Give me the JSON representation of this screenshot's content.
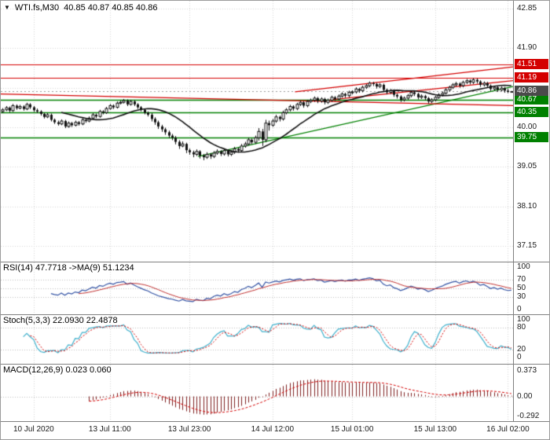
{
  "header": {
    "dropdown_icon": "▼",
    "symbol_timeframe": "WTI.fs,M30",
    "ohlc_text": "40.85 40.87 40.85 40.86"
  },
  "indicators": {
    "rsi_label": "RSI(14) 47.7718  ->MA(9) 51.1234",
    "stoch_label": "Stoch(5,3,3) 22.0930 22.4878",
    "macd_label": "MACD(12,26,9) 0.023 0.060"
  },
  "chart_data": {
    "type": "candlestick",
    "symbol": "WTI.fs",
    "timeframe": "M30",
    "current_bar": {
      "open": 40.85,
      "high": 40.87,
      "low": 40.85,
      "close": 40.86
    },
    "y_axis": {
      "top_value": 42.85,
      "bottom_value": 37.15,
      "step": 0.95,
      "ticks": [
        42.85,
        41.9,
        40.0,
        39.05,
        38.1,
        37.15
      ]
    },
    "levels": {
      "resistance": [
        41.51,
        41.19
      ],
      "support": [
        40.67,
        40.35,
        39.75
      ],
      "current_price": 40.86
    },
    "trendlines": [
      {
        "color": "green",
        "from_bar": 57,
        "from_price": 39.3,
        "to_bar": 148,
        "to_price": 40.98
      },
      {
        "color": "red",
        "from_bar": 0,
        "from_price": 40.8,
        "to_bar": 148,
        "to_price": 40.52
      },
      {
        "color": "red",
        "from_bar": 85,
        "from_price": 40.85,
        "to_bar": 148,
        "to_price": 41.45
      },
      {
        "color": "red",
        "from_bar": 95,
        "from_price": 40.66,
        "to_bar": 148,
        "to_price": 41.12
      }
    ],
    "x_labels": [
      "10 Jul 2020",
      "13 Jul 11:00",
      "13 Jul 23:00",
      "14 Jul 12:00",
      "15 Jul 01:00",
      "15 Jul 13:00",
      "16 Jul 02:00"
    ],
    "grid_bars": [
      9,
      31,
      54,
      78,
      101,
      125,
      146
    ],
    "rsi": {
      "period": 14,
      "ma_period": 9,
      "value": 47.7718,
      "ma_value": 51.1234,
      "ticks": [
        100,
        70,
        50,
        30,
        0
      ],
      "level_lines": [
        70,
        50,
        30
      ]
    },
    "stoch": {
      "k": 5,
      "d": 3,
      "slowing": 3,
      "value": 22.093,
      "signal": 22.4878,
      "ticks": [
        100,
        80,
        20,
        0
      ],
      "level_lines": [
        80,
        20
      ]
    },
    "macd": {
      "fast": 12,
      "slow": 26,
      "signal_period": 9,
      "value": 0.023,
      "signal": 0.06,
      "tick_values": [
        0.373,
        0,
        -0.292
      ],
      "tick_labels": [
        "0.373",
        "0.00",
        "-0.292"
      ]
    },
    "colors": {
      "grid": "#d6d6d6",
      "candle": "#111111",
      "ma": "#111111",
      "resistance": "#d40000",
      "support": "#008000",
      "current_badge": "#4a4a4a",
      "level_dotted": "#bdbdbd",
      "rsi_line": "#3353a4",
      "rsi_ma": "#c03030",
      "stoch_k": "#3fb0cc",
      "stoch_d": "#d40000",
      "macd_hist": "#7e1f1f",
      "macd_signal": "#d40000"
    },
    "ohlc": [
      [
        40.38,
        40.46,
        40.34,
        40.42
      ],
      [
        40.42,
        40.51,
        40.39,
        40.47
      ],
      [
        40.47,
        40.5,
        40.36,
        40.4
      ],
      [
        40.4,
        40.56,
        40.37,
        40.52
      ],
      [
        40.52,
        40.55,
        40.42,
        40.46
      ],
      [
        40.46,
        40.54,
        40.43,
        40.5
      ],
      [
        40.5,
        40.53,
        40.4,
        40.44
      ],
      [
        40.44,
        40.59,
        40.41,
        40.55
      ],
      [
        40.55,
        40.58,
        40.44,
        40.48
      ],
      [
        40.48,
        40.51,
        40.37,
        40.41
      ],
      [
        40.41,
        40.45,
        40.34,
        40.38
      ],
      [
        40.38,
        40.41,
        40.28,
        40.32
      ],
      [
        40.32,
        40.35,
        40.21,
        40.25
      ],
      [
        40.25,
        40.34,
        40.22,
        40.3
      ],
      [
        40.3,
        40.33,
        40.14,
        40.18
      ],
      [
        40.18,
        40.21,
        40.08,
        40.12
      ],
      [
        40.12,
        40.16,
        40.04,
        40.08
      ],
      [
        40.08,
        40.19,
        40.05,
        40.15
      ],
      [
        40.15,
        40.18,
        39.98,
        40.02
      ],
      [
        40.02,
        40.14,
        39.99,
        40.1
      ],
      [
        40.1,
        40.13,
        40.01,
        40.05
      ],
      [
        40.05,
        40.16,
        40.02,
        40.12
      ],
      [
        40.12,
        40.15,
        40.04,
        40.08
      ],
      [
        40.08,
        40.22,
        40.05,
        40.18
      ],
      [
        40.18,
        40.21,
        40.11,
        40.15
      ],
      [
        40.15,
        40.26,
        40.12,
        40.22
      ],
      [
        40.22,
        40.34,
        40.19,
        40.3
      ],
      [
        40.3,
        40.33,
        40.22,
        40.26
      ],
      [
        40.26,
        40.42,
        40.23,
        40.38
      ],
      [
        40.38,
        40.41,
        40.31,
        40.35
      ],
      [
        40.35,
        40.49,
        40.32,
        40.45
      ],
      [
        40.45,
        40.56,
        40.42,
        40.52
      ],
      [
        40.52,
        40.55,
        40.44,
        40.48
      ],
      [
        40.48,
        40.62,
        40.45,
        40.58
      ],
      [
        40.58,
        40.64,
        40.55,
        40.6
      ],
      [
        40.6,
        40.68,
        40.57,
        40.64
      ],
      [
        40.64,
        40.67,
        40.51,
        40.55
      ],
      [
        40.55,
        40.66,
        40.52,
        40.62
      ],
      [
        40.62,
        40.65,
        40.51,
        40.55
      ],
      [
        40.55,
        40.58,
        40.44,
        40.48
      ],
      [
        40.48,
        40.51,
        40.38,
        40.42
      ],
      [
        40.42,
        40.45,
        40.31,
        40.35
      ],
      [
        40.35,
        40.38,
        40.26,
        40.3
      ],
      [
        40.3,
        40.34,
        40.14,
        40.2
      ],
      [
        40.2,
        40.24,
        40.06,
        40.12
      ],
      [
        40.12,
        40.16,
        39.96,
        40.02
      ],
      [
        40.02,
        40.06,
        39.89,
        39.95
      ],
      [
        39.95,
        39.99,
        39.82,
        39.88
      ],
      [
        39.88,
        39.92,
        39.74,
        39.8
      ],
      [
        39.8,
        39.84,
        39.69,
        39.75
      ],
      [
        39.75,
        39.79,
        39.59,
        39.65
      ],
      [
        39.65,
        39.69,
        39.48,
        39.55
      ],
      [
        39.55,
        39.66,
        39.52,
        39.6
      ],
      [
        39.6,
        39.63,
        39.38,
        39.45
      ],
      [
        39.45,
        39.49,
        39.34,
        39.4
      ],
      [
        39.4,
        39.44,
        39.28,
        39.35
      ],
      [
        39.35,
        39.47,
        39.31,
        39.42
      ],
      [
        39.42,
        39.45,
        39.25,
        39.32
      ],
      [
        39.32,
        39.36,
        39.21,
        39.28
      ],
      [
        39.28,
        39.4,
        39.24,
        39.35
      ],
      [
        39.35,
        39.38,
        39.24,
        39.3
      ],
      [
        39.3,
        39.43,
        39.26,
        39.38
      ],
      [
        39.38,
        39.47,
        39.34,
        39.42
      ],
      [
        39.42,
        39.45,
        39.31,
        39.36
      ],
      [
        39.36,
        39.49,
        39.32,
        39.44
      ],
      [
        39.44,
        39.47,
        39.3,
        39.35
      ],
      [
        39.35,
        39.45,
        39.31,
        39.4
      ],
      [
        39.4,
        39.53,
        39.36,
        39.48
      ],
      [
        39.48,
        39.51,
        39.39,
        39.44
      ],
      [
        39.44,
        39.6,
        39.4,
        39.55
      ],
      [
        39.55,
        39.65,
        39.51,
        39.6
      ],
      [
        39.6,
        39.75,
        39.56,
        39.7
      ],
      [
        39.7,
        39.73,
        39.59,
        39.64
      ],
      [
        39.64,
        39.8,
        39.6,
        39.75
      ],
      [
        39.75,
        39.98,
        39.68,
        39.9
      ],
      [
        39.9,
        39.96,
        39.55,
        39.7
      ],
      [
        39.7,
        40.18,
        39.64,
        40.1
      ],
      [
        40.1,
        40.16,
        39.92,
        40.05
      ],
      [
        40.05,
        40.2,
        40.01,
        40.15
      ],
      [
        40.15,
        40.3,
        40.11,
        40.25
      ],
      [
        40.25,
        40.28,
        40.14,
        40.2
      ],
      [
        40.2,
        40.4,
        40.16,
        40.35
      ],
      [
        40.35,
        40.46,
        40.31,
        40.42
      ],
      [
        40.42,
        40.54,
        40.38,
        40.5
      ],
      [
        40.5,
        40.53,
        40.4,
        40.45
      ],
      [
        40.45,
        40.59,
        40.41,
        40.55
      ],
      [
        40.55,
        40.64,
        40.51,
        40.6
      ],
      [
        40.6,
        40.63,
        40.47,
        40.52
      ],
      [
        40.52,
        40.66,
        40.48,
        40.62
      ],
      [
        40.62,
        40.69,
        40.58,
        40.65
      ],
      [
        40.65,
        40.74,
        40.61,
        40.7
      ],
      [
        40.7,
        40.73,
        40.58,
        40.63
      ],
      [
        40.63,
        40.72,
        40.59,
        40.68
      ],
      [
        40.68,
        40.71,
        40.55,
        40.6
      ],
      [
        40.6,
        40.69,
        40.56,
        40.65
      ],
      [
        40.65,
        40.76,
        40.61,
        40.72
      ],
      [
        40.72,
        40.75,
        40.63,
        40.68
      ],
      [
        40.68,
        40.79,
        40.64,
        40.75
      ],
      [
        40.75,
        40.84,
        40.71,
        40.8
      ],
      [
        40.8,
        40.83,
        40.71,
        40.76
      ],
      [
        40.76,
        40.88,
        40.72,
        40.84
      ],
      [
        40.84,
        40.89,
        40.79,
        40.85
      ],
      [
        40.85,
        40.96,
        40.81,
        40.92
      ],
      [
        40.92,
        40.95,
        40.83,
        40.88
      ],
      [
        40.88,
        41.0,
        40.84,
        40.96
      ],
      [
        40.96,
        41.04,
        40.92,
        41.0
      ],
      [
        41.0,
        41.1,
        40.96,
        41.06
      ],
      [
        41.06,
        41.09,
        40.99,
        41.04
      ],
      [
        41.04,
        41.07,
        40.93,
        40.98
      ],
      [
        40.98,
        41.06,
        40.94,
        41.02
      ],
      [
        41.02,
        41.05,
        40.85,
        40.9
      ],
      [
        40.9,
        40.93,
        40.79,
        40.84
      ],
      [
        40.84,
        40.92,
        40.8,
        40.88
      ],
      [
        40.88,
        40.91,
        40.73,
        40.78
      ],
      [
        40.78,
        40.81,
        40.69,
        40.74
      ],
      [
        40.74,
        40.77,
        40.61,
        40.66
      ],
      [
        40.66,
        40.74,
        40.62,
        40.7
      ],
      [
        40.7,
        40.8,
        40.66,
        40.76
      ],
      [
        40.76,
        40.88,
        40.72,
        40.84
      ],
      [
        40.84,
        40.87,
        40.75,
        40.8
      ],
      [
        40.8,
        40.83,
        40.67,
        40.72
      ],
      [
        40.72,
        40.79,
        40.68,
        40.75
      ],
      [
        40.75,
        40.78,
        40.65,
        40.7
      ],
      [
        40.7,
        40.73,
        40.57,
        40.62
      ],
      [
        40.62,
        40.7,
        40.58,
        40.66
      ],
      [
        40.66,
        40.76,
        40.62,
        40.72
      ],
      [
        40.72,
        40.82,
        40.68,
        40.78
      ],
      [
        40.78,
        40.86,
        40.74,
        40.82
      ],
      [
        40.82,
        40.94,
        40.78,
        40.9
      ],
      [
        40.9,
        41.0,
        40.86,
        40.96
      ],
      [
        40.96,
        41.06,
        40.92,
        41.02
      ],
      [
        41.02,
        41.09,
        40.98,
        41.05
      ],
      [
        41.05,
        41.08,
        40.95,
        41.0
      ],
      [
        41.0,
        41.12,
        40.96,
        41.08
      ],
      [
        41.08,
        41.16,
        41.04,
        41.12
      ],
      [
        41.12,
        41.15,
        41.03,
        41.08
      ],
      [
        41.08,
        41.18,
        41.04,
        41.14
      ],
      [
        41.14,
        41.17,
        41.05,
        41.1
      ],
      [
        41.1,
        41.13,
        40.97,
        41.02
      ],
      [
        41.02,
        41.1,
        40.98,
        41.06
      ],
      [
        41.06,
        41.09,
        40.95,
        41.0
      ],
      [
        41.0,
        41.03,
        40.87,
        40.92
      ],
      [
        40.92,
        41.0,
        40.88,
        40.96
      ],
      [
        40.96,
        40.99,
        40.85,
        40.9
      ],
      [
        40.9,
        40.98,
        40.86,
        40.94
      ],
      [
        40.94,
        40.97,
        40.83,
        40.88
      ],
      [
        40.88,
        40.93,
        40.82,
        40.85
      ],
      [
        40.85,
        40.87,
        40.85,
        40.86
      ]
    ]
  }
}
